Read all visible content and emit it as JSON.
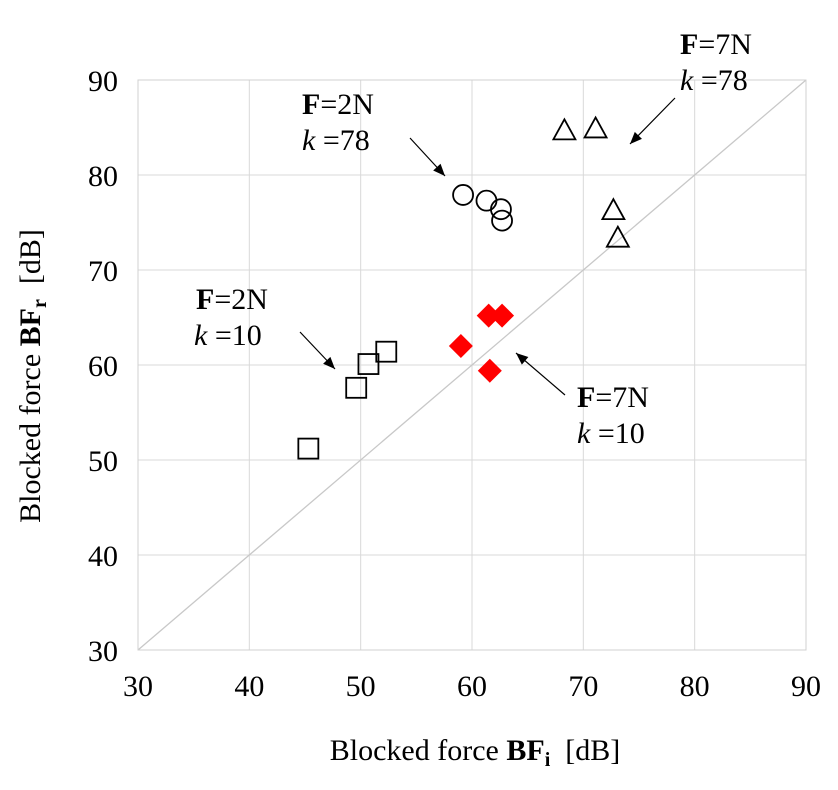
{
  "chart_data": {
    "type": "scatter",
    "xlabel_pre": "Blocked force ",
    "xlabel_bold": "BF",
    "xlabel_sub": "i",
    "xlabel_unit": "  [dB]",
    "ylabel_pre": "Blocked force ",
    "ylabel_bold": "BF",
    "ylabel_sub": "r",
    "ylabel_unit": "  [dB]",
    "xlim": [
      30,
      90
    ],
    "ylim": [
      30,
      90
    ],
    "xticks": [
      30,
      40,
      50,
      60,
      70,
      80,
      90
    ],
    "yticks": [
      30,
      40,
      50,
      60,
      70,
      80,
      90
    ],
    "grid": true,
    "reference_line": "y = x",
    "series": [
      {
        "marker": "square",
        "color": "#000000",
        "filled": false,
        "x": [
          45.3,
          49.6,
          50.7,
          52.3
        ],
        "y": [
          51.2,
          57.6,
          60.1,
          61.4
        ]
      },
      {
        "marker": "circle",
        "color": "#000000",
        "filled": false,
        "x": [
          59.2,
          61.3,
          62.6,
          62.7
        ],
        "y": [
          77.9,
          77.3,
          76.4,
          75.2
        ]
      },
      {
        "marker": "triangle",
        "color": "#000000",
        "filled": false,
        "x": [
          68.3,
          71.1,
          72.7,
          73.1
        ],
        "y": [
          84.7,
          84.9,
          76.3,
          73.4
        ]
      },
      {
        "marker": "diamond",
        "color": "#ff0000",
        "filled": true,
        "x": [
          59.0,
          61.5,
          62.7,
          61.6
        ],
        "y": [
          62.0,
          65.2,
          65.2,
          59.4
        ]
      }
    ],
    "annotations": [
      {
        "bold": "F",
        "line1": "=2N",
        "italic": "k",
        "line2": " =10"
      },
      {
        "bold": "F",
        "line1": "=2N",
        "italic": "k",
        "line2": " =78"
      },
      {
        "bold": "F",
        "line1": "=7N",
        "italic": "k",
        "line2": " =78"
      },
      {
        "bold": "F",
        "line1": "=7N",
        "italic": "k",
        "line2": " =10"
      }
    ]
  }
}
